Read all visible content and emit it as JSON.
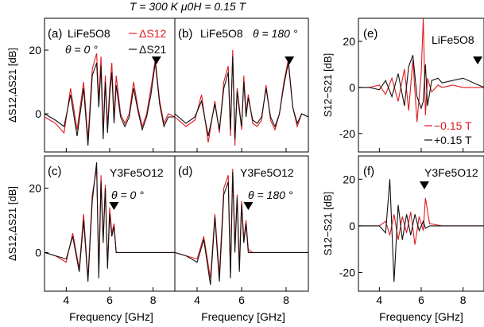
{
  "header": {
    "conditions": "T = 300 K  μ0H = 0.15 T"
  },
  "colors": {
    "black_series": "#111111",
    "red_series": "#e0191e",
    "axis": "#000000"
  },
  "chart_data": [
    {
      "panel_label": "(a)",
      "type": "line",
      "sample": "LiFe5O8",
      "angle": "θ = 0 °",
      "ylabel": "ΔS12,ΔS21 [dB]",
      "xlim": [
        3,
        9
      ],
      "ylim": [
        -12,
        30
      ],
      "yticks": [
        0,
        20
      ],
      "xticks": [
        4,
        6,
        8
      ],
      "marker_x": 8.15,
      "series": [
        {
          "name": "ΔS12",
          "color": "#e0191e",
          "x": [
            3.0,
            3.5,
            3.9,
            4.2,
            4.5,
            4.8,
            5.0,
            5.2,
            5.4,
            5.5,
            5.6,
            5.7,
            5.8,
            5.9,
            6.0,
            6.1,
            6.2,
            6.3,
            6.5,
            6.7,
            6.9,
            7.1,
            7.3,
            7.5,
            7.7,
            7.9,
            8.1,
            8.3,
            8.5,
            8.7,
            9.0
          ],
          "values": [
            -1,
            -3,
            -6,
            8,
            -5,
            10,
            -8,
            14,
            19,
            4,
            18,
            -6,
            12,
            -4,
            8,
            16,
            -2,
            12,
            0,
            -3,
            0,
            10,
            2,
            -4,
            0,
            8,
            17,
            4,
            -3,
            0,
            -1
          ]
        },
        {
          "name": "ΔS21",
          "color": "#111111",
          "x": [
            3.0,
            3.5,
            3.9,
            4.2,
            4.5,
            4.8,
            5.0,
            5.2,
            5.4,
            5.5,
            5.6,
            5.7,
            5.8,
            5.9,
            6.0,
            6.1,
            6.2,
            6.3,
            6.5,
            6.7,
            6.9,
            7.1,
            7.3,
            7.5,
            7.7,
            7.9,
            8.1,
            8.3,
            8.5,
            8.7,
            9.0
          ],
          "values": [
            0,
            -2,
            -4,
            6,
            -7,
            8,
            -10,
            12,
            16,
            2,
            15,
            -8,
            10,
            -6,
            6,
            13,
            -3,
            9,
            -1,
            -4,
            -1,
            8,
            1,
            -5,
            -1,
            6,
            16,
            3,
            -4,
            -1,
            -1
          ]
        }
      ]
    },
    {
      "panel_label": "(b)",
      "type": "line",
      "sample": "LiFe5O8",
      "angle": "θ = 180 °",
      "xlim": [
        3,
        9
      ],
      "ylim": [
        -12,
        30
      ],
      "marker_x": 8.15,
      "series": [
        {
          "name": "ΔS12",
          "color": "#e0191e",
          "x": [
            3.0,
            3.5,
            3.9,
            4.2,
            4.5,
            4.8,
            5.0,
            5.2,
            5.4,
            5.5,
            5.6,
            5.7,
            5.8,
            5.9,
            6.0,
            6.1,
            6.2,
            6.3,
            6.5,
            6.7,
            6.9,
            7.1,
            7.3,
            7.5,
            7.7,
            7.9,
            8.1,
            8.3,
            8.5,
            8.7,
            9.0
          ],
          "values": [
            -1,
            -4,
            -2,
            6,
            -9,
            4,
            -6,
            10,
            15,
            -7,
            20,
            -10,
            8,
            2,
            -5,
            12,
            0,
            6,
            -3,
            -4,
            -2,
            9,
            -2,
            -5,
            0,
            10,
            17,
            2,
            -4,
            0,
            -1
          ]
        },
        {
          "name": "ΔS21",
          "color": "#111111",
          "x": [
            3.0,
            3.5,
            3.9,
            4.2,
            4.5,
            4.8,
            5.0,
            5.2,
            5.4,
            5.5,
            5.6,
            5.7,
            5.8,
            5.9,
            6.0,
            6.1,
            6.2,
            6.3,
            6.5,
            6.7,
            6.9,
            7.1,
            7.3,
            7.5,
            7.7,
            7.9,
            8.1,
            8.3,
            8.5,
            8.7,
            9.0
          ],
          "values": [
            0,
            -3,
            -1,
            4,
            -7,
            3,
            -5,
            8,
            13,
            -5,
            18,
            -8,
            7,
            1,
            -4,
            10,
            -1,
            5,
            -2,
            -3,
            -1,
            8,
            -1,
            -4,
            0,
            9,
            16,
            2,
            -3,
            0,
            -1
          ]
        }
      ]
    },
    {
      "panel_label": "(e)",
      "type": "line",
      "sample": "LiFe5O8",
      "ylabel": "S12−S21 [dB]",
      "xlim": [
        3,
        9
      ],
      "ylim": [
        -28,
        30
      ],
      "yticks": [
        -20,
        0,
        20
      ],
      "marker_x": 8.7,
      "series": [
        {
          "name": "−0.15 T",
          "color": "#e0191e",
          "x": [
            3.0,
            3.5,
            4.0,
            4.3,
            4.6,
            4.9,
            5.2,
            5.4,
            5.6,
            5.8,
            6.0,
            6.1,
            6.2,
            6.3,
            6.5,
            6.8,
            7.0,
            7.5,
            8.0,
            8.5,
            9.0
          ],
          "values": [
            0,
            0,
            1,
            -3,
            4,
            -6,
            8,
            -10,
            12,
            -15,
            6,
            32,
            -12,
            4,
            -2,
            1,
            0,
            1,
            0,
            0,
            0
          ]
        },
        {
          "name": "+0.15 T",
          "color": "#111111",
          "x": [
            3.0,
            3.5,
            4.0,
            4.3,
            4.6,
            4.9,
            5.2,
            5.4,
            5.6,
            5.8,
            6.0,
            6.1,
            6.2,
            6.3,
            6.5,
            6.8,
            7.0,
            7.5,
            8.0,
            8.5,
            9.0
          ],
          "values": [
            0,
            0,
            -1,
            3,
            -4,
            6,
            -8,
            9,
            14,
            -4,
            -9,
            -6,
            10,
            -8,
            3,
            4,
            2,
            3,
            4,
            2,
            0
          ]
        }
      ]
    },
    {
      "panel_label": "(c)",
      "type": "line",
      "sample": "Y3Fe5O12",
      "angle": "θ = 0 °",
      "ylabel": "ΔS12,ΔS21 [dB]",
      "xlabel": "Frequency [GHz]",
      "xlim": [
        3,
        9
      ],
      "ylim": [
        -12,
        30
      ],
      "yticks": [
        0,
        20
      ],
      "xticks": [
        4,
        6,
        8
      ],
      "marker_x": 6.2,
      "series": [
        {
          "name": "ΔS12",
          "color": "#e0191e",
          "x": [
            3.0,
            3.5,
            4.0,
            4.3,
            4.6,
            4.8,
            5.0,
            5.2,
            5.4,
            5.5,
            5.6,
            5.7,
            5.8,
            5.9,
            6.0,
            6.1,
            6.2,
            6.3,
            6.5,
            6.8,
            7.2,
            7.8,
            8.5,
            9.0
          ],
          "values": [
            0,
            -1,
            -3,
            6,
            -5,
            12,
            -8,
            18,
            26,
            -6,
            24,
            4,
            21,
            -4,
            14,
            6,
            9,
            0,
            0,
            0,
            0,
            0,
            0,
            0
          ]
        },
        {
          "name": "ΔS21",
          "color": "#111111",
          "x": [
            3.0,
            3.5,
            4.0,
            4.3,
            4.6,
            4.8,
            5.0,
            5.2,
            5.4,
            5.5,
            5.6,
            5.7,
            5.8,
            5.9,
            6.0,
            6.1,
            6.2,
            6.3,
            6.5,
            6.8,
            7.2,
            7.8,
            8.5,
            9.0
          ],
          "values": [
            0,
            -1,
            -2,
            5,
            -6,
            10,
            -9,
            16,
            28,
            -8,
            22,
            3,
            20,
            -5,
            12,
            5,
            8,
            0,
            0,
            0,
            0,
            0,
            0,
            0
          ]
        }
      ]
    },
    {
      "panel_label": "(d)",
      "type": "line",
      "sample": "Y3Fe5O12",
      "angle": "θ = 180 °",
      "xlabel": "Frequency [GHz]",
      "xlim": [
        3,
        9
      ],
      "ylim": [
        -12,
        30
      ],
      "xticks": [
        4,
        6,
        8
      ],
      "marker_x": 6.3,
      "series": [
        {
          "name": "ΔS12",
          "color": "#e0191e",
          "x": [
            3.0,
            3.5,
            4.0,
            4.3,
            4.6,
            4.8,
            5.0,
            5.2,
            5.4,
            5.5,
            5.6,
            5.7,
            5.8,
            5.9,
            6.0,
            6.1,
            6.2,
            6.3,
            6.5,
            6.8,
            7.2,
            7.8,
            8.5,
            9.0
          ],
          "values": [
            0,
            -1,
            -2,
            5,
            -8,
            12,
            -7,
            20,
            24,
            -6,
            26,
            2,
            18,
            -4,
            16,
            4,
            10,
            1,
            0,
            0,
            0,
            0,
            0,
            0
          ]
        },
        {
          "name": "ΔS21",
          "color": "#111111",
          "x": [
            3.0,
            3.5,
            4.0,
            4.3,
            4.6,
            4.8,
            5.0,
            5.2,
            5.4,
            5.5,
            5.6,
            5.7,
            5.8,
            5.9,
            6.0,
            6.1,
            6.2,
            6.3,
            6.5,
            6.8,
            7.2,
            7.8,
            8.5,
            9.0
          ],
          "values": [
            0,
            -1,
            -3,
            4,
            -10,
            11,
            -9,
            18,
            22,
            -8,
            25,
            0,
            17,
            -6,
            15,
            3,
            9,
            0,
            0,
            0,
            0,
            0,
            0,
            0
          ]
        }
      ]
    },
    {
      "panel_label": "(f)",
      "type": "line",
      "sample": "Y3Fe5O12",
      "ylabel": "S12−S21 [dB]",
      "xlabel": "Frequency [GHz]",
      "xlim": [
        3,
        9
      ],
      "ylim": [
        -28,
        30
      ],
      "yticks": [
        -20,
        0,
        20
      ],
      "xticks": [
        4,
        6,
        8
      ],
      "marker_x": 6.15,
      "series": [
        {
          "name": "−0.15 T",
          "color": "#e0191e",
          "x": [
            3.0,
            3.5,
            4.0,
            4.3,
            4.5,
            4.7,
            4.9,
            5.1,
            5.3,
            5.5,
            5.7,
            5.9,
            6.1,
            6.2,
            6.4,
            7.0,
            8.0,
            9.0
          ],
          "values": [
            0,
            0,
            0,
            2,
            -4,
            5,
            -6,
            4,
            -3,
            6,
            -8,
            4,
            -2,
            12,
            1,
            0,
            0,
            0
          ]
        },
        {
          "name": "+0.15 T",
          "color": "#111111",
          "x": [
            3.0,
            3.5,
            4.0,
            4.3,
            4.5,
            4.7,
            4.9,
            5.1,
            5.3,
            5.5,
            5.7,
            5.9,
            6.1,
            6.2,
            6.4,
            7.0,
            8.0,
            9.0
          ],
          "values": [
            0,
            0,
            0,
            -3,
            20,
            -24,
            9,
            -6,
            5,
            -4,
            5,
            -2,
            2,
            -1,
            0,
            0,
            0,
            0
          ]
        }
      ]
    }
  ],
  "labels": {
    "a_sample": "LiFe5O8",
    "a_angle": "θ = 0 °",
    "a_series1": "ΔS12",
    "a_series2": "ΔS21",
    "b_sample": "LiFe5O8",
    "b_angle": "θ = 180 °",
    "e_sample": "LiFe5O8",
    "e_series1": "−0.15 T",
    "e_series2": "+0.15 T",
    "c_sample": "Y3Fe5O12",
    "c_angle": "θ = 0 °",
    "d_sample": "Y3Fe5O12",
    "d_angle": "θ = 180 °",
    "f_sample": "Y3Fe5O12",
    "ylabel_left": "ΔS12,ΔS21 [dB]",
    "ylabel_right": "S12−S21 [dB]",
    "xlabel": "Frequency [GHz]"
  }
}
